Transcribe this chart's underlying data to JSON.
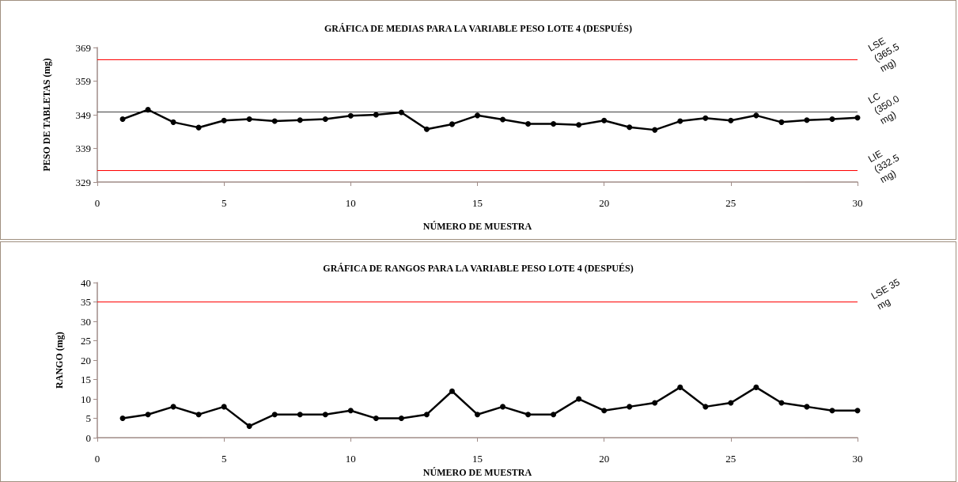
{
  "chart_data": [
    {
      "type": "line",
      "title": "GRÁFICA DE MEDIAS PARA LA VARIABLE PESO LOTE 4 (DESPUÉS)",
      "xlabel": "NÚMERO DE MUESTRA",
      "ylabel": "PESO DE TABLETAS (mg)",
      "x": [
        1,
        2,
        3,
        4,
        5,
        6,
        7,
        8,
        9,
        10,
        11,
        12,
        13,
        14,
        15,
        16,
        17,
        18,
        19,
        20,
        21,
        22,
        23,
        24,
        25,
        26,
        27,
        28,
        29,
        30
      ],
      "series": [
        {
          "color": "#000000",
          "values": [
            347.7,
            350.5,
            346.8,
            345.2,
            347.3,
            347.7,
            347.1,
            347.4,
            347.7,
            348.7,
            349.0,
            349.7,
            344.7,
            346.2,
            348.8,
            347.6,
            346.3,
            346.3,
            346.0,
            347.3,
            345.3,
            344.5,
            347.1,
            348.0,
            347.3,
            348.8,
            346.8,
            347.4,
            347.7,
            348.1
          ]
        }
      ],
      "xlim": [
        0,
        30
      ],
      "xticks": [
        0,
        5,
        10,
        15,
        20,
        25,
        30
      ],
      "ylim": [
        329,
        369
      ],
      "yticks": [
        329,
        339,
        349,
        359,
        369
      ],
      "ref_lines": [
        {
          "axis": "y",
          "value": 365.5,
          "label": "LSE (365.5 mg)",
          "color": "#ff0000"
        },
        {
          "axis": "y",
          "value": 350.0,
          "label": "LC (350.0 mg)",
          "color": "#404040"
        },
        {
          "axis": "y",
          "value": 332.5,
          "label": "LIE (332.5 mg)",
          "color": "#ff0000"
        }
      ],
      "marker": "circle",
      "line_style": "solid",
      "grid": false
    },
    {
      "type": "line",
      "title": "GRÁFICA DE RANGOS PARA LA VARIABLE PESO LOTE 4 (DESPUÉS)",
      "xlabel": "NÚMERO DE MUESTRA",
      "ylabel": "RANGO (mg)",
      "x": [
        1,
        2,
        3,
        4,
        5,
        6,
        7,
        8,
        9,
        10,
        11,
        12,
        13,
        14,
        15,
        16,
        17,
        18,
        19,
        20,
        21,
        22,
        23,
        24,
        25,
        26,
        27,
        28,
        29,
        30
      ],
      "series": [
        {
          "color": "#000000",
          "values": [
            5,
            6,
            8,
            6,
            8,
            3,
            6,
            6,
            6,
            7,
            5,
            5,
            6,
            12,
            6,
            8,
            6,
            6,
            10,
            7,
            8,
            9,
            13,
            8,
            9,
            13,
            9,
            8,
            7,
            7
          ]
        }
      ],
      "xlim": [
        0,
        30
      ],
      "xticks": [
        0,
        5,
        10,
        15,
        20,
        25,
        30
      ],
      "ylim": [
        0,
        40
      ],
      "yticks": [
        0,
        5,
        10,
        15,
        20,
        25,
        30,
        35,
        40
      ],
      "ref_lines": [
        {
          "axis": "y",
          "value": 35,
          "label": "LSE 35 mg",
          "color": "#ff0000"
        }
      ],
      "marker": "circle",
      "line_style": "solid",
      "grid": false
    }
  ]
}
